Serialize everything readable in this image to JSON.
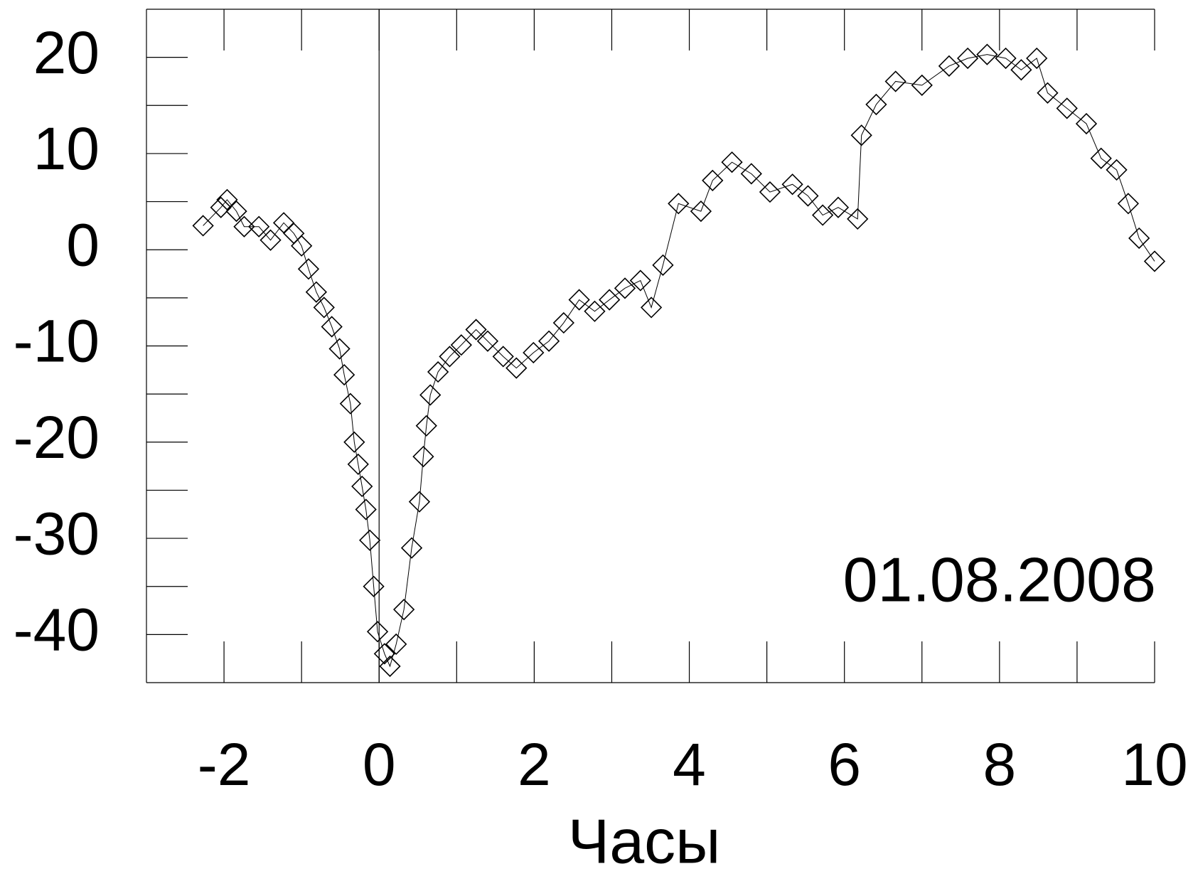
{
  "chart_data": {
    "type": "line",
    "xlabel": "Часы",
    "annotation": "01.08.2008",
    "x": [
      -2.27,
      -2.04,
      -1.96,
      -1.84,
      -1.74,
      -1.55,
      -1.4,
      -1.23,
      -1.1,
      -1.0,
      -0.91,
      -0.81,
      -0.71,
      -0.61,
      -0.51,
      -0.45,
      -0.37,
      -0.32,
      -0.27,
      -0.22,
      -0.17,
      -0.12,
      -0.07,
      -0.02,
      0.07,
      0.14,
      0.22,
      0.32,
      0.42,
      0.52,
      0.57,
      0.61,
      0.66,
      0.76,
      0.91,
      1.06,
      1.25,
      1.4,
      1.6,
      1.77,
      1.99,
      2.19,
      2.38,
      2.58,
      2.78,
      2.97,
      3.17,
      3.37,
      3.51,
      3.66,
      3.86,
      4.15,
      4.3,
      4.55,
      4.8,
      5.04,
      5.33,
      5.53,
      5.72,
      5.92,
      6.17,
      6.22,
      6.41,
      6.66,
      7.0,
      7.35,
      7.59,
      7.84,
      8.08,
      8.28,
      8.48,
      8.62,
      8.87,
      9.12,
      9.31,
      9.51,
      9.66,
      9.8,
      10.0
    ],
    "series": [
      {
        "color": "#000000",
        "marker": "diamond",
        "values": [
          2.5,
          4.4,
          5.2,
          4,
          2.4,
          2.4,
          1,
          2.8,
          1.7,
          0.4,
          -2,
          -4.4,
          -6,
          -8,
          -10.3,
          -13,
          -16,
          -20,
          -22.3,
          -24.6,
          -27,
          -30.2,
          -35,
          -39.7,
          -42,
          -43.3,
          -41,
          -37.4,
          -31,
          -26.2,
          -21.5,
          -18.3,
          -15.1,
          -12.7,
          -11.1,
          -9.9,
          -8.3,
          -9.5,
          -11.1,
          -12.3,
          -10.7,
          -9.5,
          -7.6,
          -5.2,
          -6.4,
          -5.2,
          -4,
          -3.2,
          -6,
          -1.6,
          4.8,
          4,
          7.2,
          9.1,
          7.9,
          6,
          6.8,
          5.6,
          3.6,
          4.4,
          3.2,
          11.9,
          15.1,
          17.5,
          17.1,
          19.1,
          19.9,
          20.3,
          19.9,
          18.7,
          19.9,
          16.3,
          14.7,
          13.1,
          9.5,
          8.3,
          4.8,
          1.2,
          -1.2
        ]
      }
    ],
    "xlim": [
      -3,
      10
    ],
    "ylim": [
      -45,
      25
    ],
    "xticks": [
      -2,
      0,
      2,
      4,
      6,
      8,
      10
    ],
    "yticks": [
      -40,
      -30,
      -20,
      -10,
      0,
      10,
      20
    ],
    "minor_ticks": true,
    "zero_line": true
  }
}
